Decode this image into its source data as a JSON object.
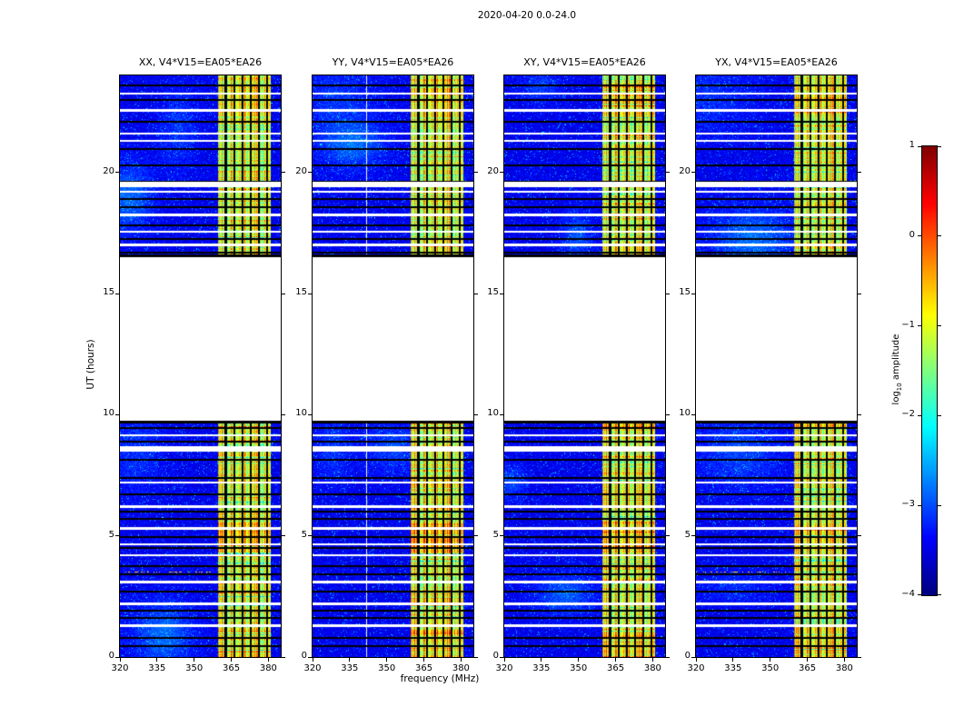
{
  "chart_data": {
    "type": "heatmap",
    "title": "2020-04-20 0.0-24.0",
    "xlabel": "frequency (MHz)",
    "ylabel": "UT (hours)",
    "x_range_mhz": [
      320,
      385
    ],
    "y_range_hours": [
      0,
      24
    ],
    "x_tick_values": [
      320,
      335,
      350,
      365,
      380
    ],
    "x_tick_labels": [
      "320",
      "335",
      "350",
      "365",
      "380"
    ],
    "y_tick_values": [
      0,
      5,
      10,
      15,
      20
    ],
    "y_tick_labels": [
      "0",
      "5",
      "10",
      "15",
      "20"
    ],
    "panels": [
      {
        "title": "XX, V4*V15=EA05*EA26",
        "pol": "XX",
        "seed": 101,
        "white_channels_mhz": [],
        "dot_row_hours": [
          3.5
        ],
        "band_bumps": []
      },
      {
        "title": "YY, V4*V15=EA05*EA26",
        "pol": "YY",
        "seed": 202,
        "white_channels_mhz": [
          341.5
        ],
        "dot_row_hours": [],
        "band_bumps": [
          [
            4.4,
            5.5,
            0.2
          ]
        ]
      },
      {
        "title": "XY, V4*V15=EA05*EA26",
        "pol": "XY",
        "seed": 303,
        "white_channels_mhz": [],
        "dot_row_hours": [],
        "band_bumps": []
      },
      {
        "title": "YX, V4*V15=EA05*EA26",
        "pol": "YX",
        "seed": 404,
        "white_channels_mhz": [],
        "dot_row_hours": [
          3.5
        ],
        "band_bumps": []
      }
    ],
    "time_blocks_hours": [
      [
        0.0,
        9.7
      ],
      [
        16.55,
        24.0
      ]
    ],
    "rfi_band_mhz": [
      359.5,
      381.0
    ],
    "flagged_channels_mhz": [
      362.8,
      366.2,
      369.5,
      372.9,
      376.2,
      379.5
    ],
    "white_rows_hours": [
      9.15,
      8.6,
      7.2,
      6.2,
      5.3,
      4.65,
      4.2,
      3.1,
      2.2,
      1.3,
      23.25,
      22.55,
      21.6,
      21.3,
      19.5,
      19.2,
      18.25,
      17.55,
      17.0
    ],
    "wide_white_rows_hours": [
      8.6,
      19.5
    ],
    "black_rows_hours": [
      9.45,
      8.9,
      8.15,
      7.4,
      6.7,
      6.0,
      5.7,
      4.95,
      4.5,
      3.75,
      3.4,
      2.7,
      1.9,
      1.6,
      0.8,
      0.45,
      23.6,
      23.0,
      22.1,
      20.95,
      20.3,
      19.6,
      18.9,
      18.55,
      17.8,
      17.25,
      16.7
    ],
    "noise_floor_log10": -3.45,
    "band_bright_rows_hours": [
      [
        4.3,
        5.6,
        0.3
      ],
      [
        22.3,
        23.6,
        0.25
      ],
      [
        0.0,
        1.2,
        0.2
      ],
      [
        9.45,
        9.7,
        0.35
      ],
      [
        16.55,
        16.95,
        0.2
      ]
    ],
    "colorbar": {
      "label": "log10 amplitude",
      "label_parts": {
        "prefix": "log",
        "sub": "10",
        "suffix": " amplitude"
      },
      "tick_values": [
        1,
        0,
        -1,
        -2,
        -3,
        -4
      ],
      "tick_labels": [
        "1",
        "0",
        "−1",
        "−2",
        "−3",
        "−4"
      ],
      "value_range": [
        -4,
        1
      ],
      "colormap": "jet"
    }
  }
}
